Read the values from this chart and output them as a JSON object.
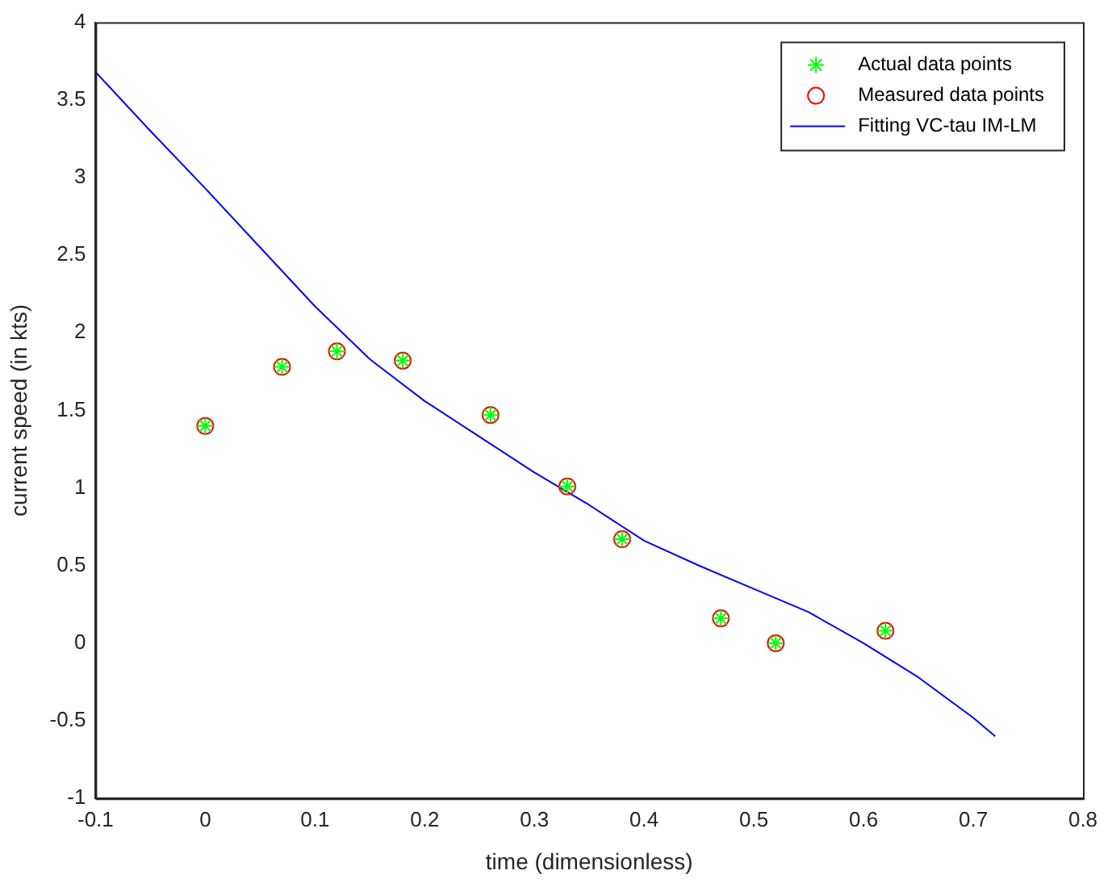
{
  "chart_data": {
    "type": "scatter",
    "xlabel": "time (dimensionless)",
    "ylabel": "current speed (in kts)",
    "xlim": [
      -0.1,
      0.8
    ],
    "xticks": [
      -0.1,
      0,
      0.1,
      0.2,
      0.3,
      0.4,
      0.5,
      0.6,
      0.7,
      0.8
    ],
    "ylim": [
      -1,
      4
    ],
    "yticks": [
      -1,
      -0.5,
      0,
      0.5,
      1,
      1.5,
      2,
      2.5,
      3,
      3.5,
      4
    ],
    "grid": false,
    "legend": "top right",
    "series": [
      {
        "name": "Actual data points",
        "type": "scatter",
        "marker": "cross",
        "color": "#00ff00",
        "x": [
          0,
          0.07,
          0.12,
          0.18,
          0.26,
          0.33,
          0.38,
          0.47,
          0.52,
          0.62
        ],
        "values": [
          1.4,
          1.78,
          1.88,
          1.82,
          1.47,
          1.01,
          0.67,
          0.16,
          0,
          0.08
        ]
      },
      {
        "name": "Measured data points",
        "type": "scatter",
        "marker": "circle",
        "color": "#ff0000",
        "x": [
          0,
          0.07,
          0.12,
          0.18,
          0.26,
          0.33,
          0.38,
          0.47,
          0.52,
          0.62
        ],
        "values": [
          1.4,
          1.78,
          1.88,
          1.82,
          1.47,
          1.01,
          0.67,
          0.16,
          0,
          0.08
        ]
      },
      {
        "name": "Fitting VC-tau IM-LM",
        "type": "line",
        "marker": "none",
        "color": "#0000ff",
        "x": [
          -0.1,
          -0.05,
          0,
          0.05,
          0.1,
          0.15,
          0.2,
          0.25,
          0.3,
          0.35,
          0.4,
          0.45,
          0.5,
          0.55,
          0.6,
          0.65,
          0.7,
          0.72
        ],
        "values": [
          3.68,
          3.3,
          2.93,
          2.55,
          2.17,
          1.83,
          1.56,
          1.33,
          1.1,
          0.89,
          0.66,
          0.5,
          0.35,
          0.2,
          0,
          -0.22,
          -0.48,
          -0.6
        ]
      }
    ]
  }
}
